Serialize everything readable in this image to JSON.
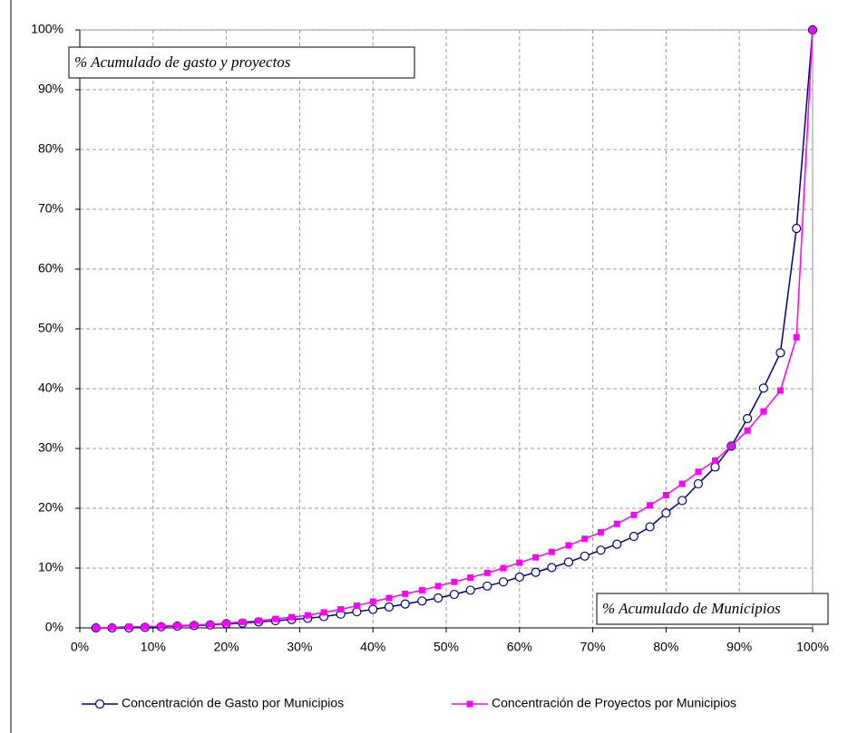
{
  "chart_data": {
    "type": "line",
    "annotations": [
      "% Acumulado de gasto y proyectos",
      "% Acumulado de Municipios"
    ],
    "x": [
      2.2,
      4.4,
      6.7,
      8.9,
      11.1,
      13.3,
      15.6,
      17.8,
      20,
      22.2,
      24.4,
      26.7,
      28.9,
      31.1,
      33.3,
      35.6,
      37.8,
      40,
      42.2,
      44.4,
      46.7,
      48.9,
      51.1,
      53.3,
      55.6,
      57.8,
      60,
      62.2,
      64.4,
      66.7,
      68.9,
      71.1,
      73.3,
      75.6,
      77.8,
      80,
      82.2,
      84.4,
      86.7,
      88.9,
      91.1,
      93.3,
      95.6,
      97.8,
      100
    ],
    "series": [
      {
        "name": "Concentración de Gasto por Municipios",
        "color": "#000080",
        "marker": "circle",
        "values": [
          0,
          0,
          0,
          0.1,
          0.2,
          0.3,
          0.4,
          0.5,
          0.7,
          0.8,
          1.0,
          1.2,
          1.4,
          1.6,
          1.9,
          2.3,
          2.7,
          3.1,
          3.5,
          4.0,
          4.5,
          5.0,
          5.6,
          6.3,
          7.0,
          7.7,
          8.5,
          9.3,
          10.1,
          11.0,
          12.0,
          13.0,
          14.0,
          15.3,
          16.9,
          19.2,
          21.3,
          24.1,
          26.9,
          30.4,
          35.0,
          40.1,
          46.0,
          66.8,
          100
        ]
      },
      {
        "name": "Concentración de Proyectos por Municipios",
        "color": "#ff00ff",
        "marker": "square",
        "values": [
          0,
          0.1,
          0.2,
          0.2,
          0.3,
          0.4,
          0.5,
          0.6,
          0.8,
          1.0,
          1.2,
          1.5,
          1.8,
          2.1,
          2.6,
          3.1,
          3.7,
          4.4,
          5.0,
          5.7,
          6.3,
          7.0,
          7.7,
          8.4,
          9.2,
          10.0,
          10.9,
          11.8,
          12.7,
          13.8,
          14.9,
          16.0,
          17.4,
          18.9,
          20.5,
          22.2,
          24.1,
          26.1,
          28.0,
          30.4,
          33.0,
          36.2,
          39.7,
          48.6,
          100
        ]
      }
    ],
    "xlim": [
      0,
      100
    ],
    "xticks": [
      {
        "value": 0,
        "label": "0%"
      },
      {
        "value": 10,
        "label": "10%"
      },
      {
        "value": 20,
        "label": "20%"
      },
      {
        "value": 30,
        "label": "30%"
      },
      {
        "value": 40,
        "label": "40%"
      },
      {
        "value": 50,
        "label": "50%"
      },
      {
        "value": 60,
        "label": "60%"
      },
      {
        "value": 70,
        "label": "70%"
      },
      {
        "value": 80,
        "label": "80%"
      },
      {
        "value": 90,
        "label": "90%"
      },
      {
        "value": 100,
        "label": "100%"
      }
    ],
    "ylim": [
      0,
      100
    ],
    "yticks": [
      {
        "value": 0,
        "label": "0%"
      },
      {
        "value": 10,
        "label": "10%"
      },
      {
        "value": 20,
        "label": "20%"
      },
      {
        "value": 30,
        "label": "30%"
      },
      {
        "value": 40,
        "label": "40%"
      },
      {
        "value": 50,
        "label": "50%"
      },
      {
        "value": 60,
        "label": "60%"
      },
      {
        "value": 70,
        "label": "70%"
      },
      {
        "value": 80,
        "label": "80%"
      },
      {
        "value": 90,
        "label": "90%"
      },
      {
        "value": 100,
        "label": "100%"
      }
    ],
    "grid": true
  }
}
